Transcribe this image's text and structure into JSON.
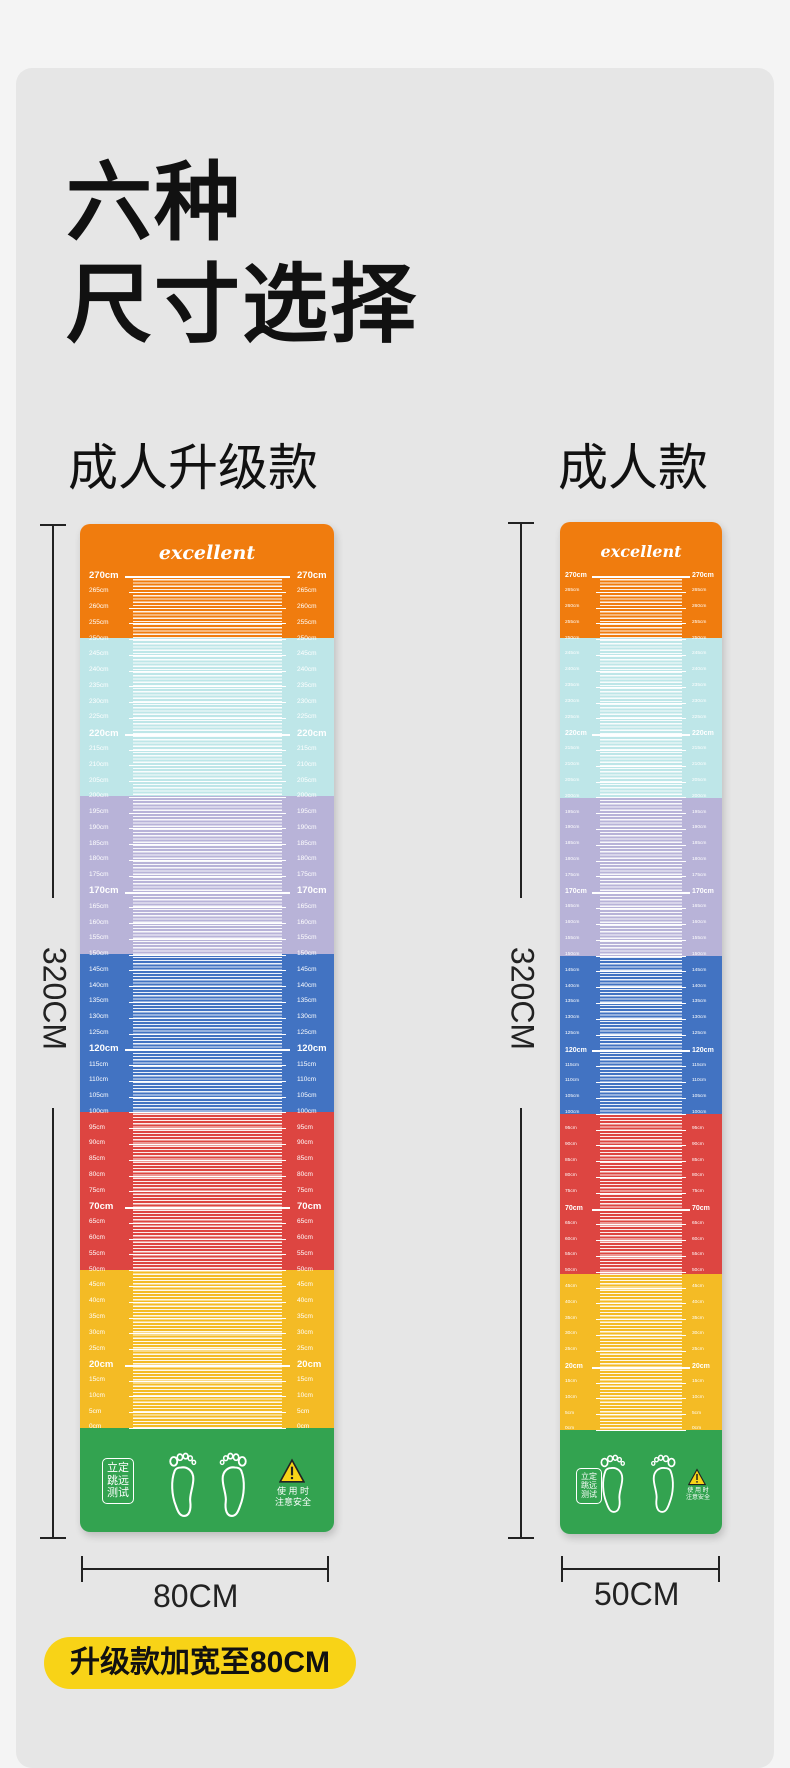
{
  "heading": {
    "line1": "六种",
    "line2": "尺寸选择"
  },
  "models": {
    "left": {
      "title": "成人升级款",
      "length_label": "320CM",
      "width_label": "80CM"
    },
    "right": {
      "title": "成人款",
      "length_label": "320CM",
      "width_label": "50CM"
    }
  },
  "mat": {
    "brand": "excellent",
    "badge_lines": [
      "立定",
      "跳远",
      "测试"
    ],
    "warning": [
      "使 用 时",
      "注意安全"
    ],
    "bands": [
      {
        "color": "#f07c0e",
        "range": "250-270"
      },
      {
        "color": "#bee6e8",
        "range": "200-250"
      },
      {
        "color": "#b8b3d8",
        "range": "150-200"
      },
      {
        "color": "#4273c2",
        "range": "100-150"
      },
      {
        "color": "#dd4541",
        "range": "50-100"
      },
      {
        "color": "#f4bb25",
        "range": "0-50"
      },
      {
        "color": "#33a350",
        "range": "feet-zone"
      }
    ],
    "ticks": [
      "270cm",
      "265cm",
      "260cm",
      "255cm",
      "250cm",
      "245cm",
      "240cm",
      "235cm",
      "230cm",
      "225cm",
      "220cm",
      "215cm",
      "210cm",
      "205cm",
      "200cm",
      "195cm",
      "190cm",
      "185cm",
      "180cm",
      "175cm",
      "170cm",
      "165cm",
      "160cm",
      "155cm",
      "150cm",
      "145cm",
      "140cm",
      "135cm",
      "130cm",
      "125cm",
      "120cm",
      "115cm",
      "110cm",
      "105cm",
      "100cm",
      "95cm",
      "90cm",
      "85cm",
      "80cm",
      "75cm",
      "70cm",
      "65cm",
      "60cm",
      "55cm",
      "50cm",
      "45cm",
      "40cm",
      "35cm",
      "30cm",
      "25cm",
      "20cm",
      "15cm",
      "10cm",
      "5cm",
      "0cm"
    ]
  },
  "note": "升级款加宽至80CM"
}
